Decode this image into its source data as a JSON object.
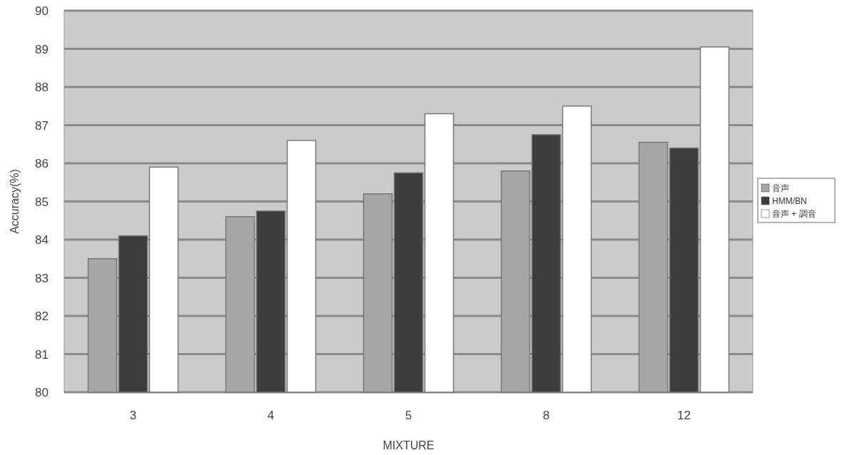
{
  "chart_data": {
    "type": "bar",
    "xlabel": "MIXTURE",
    "ylabel": "Accuracy(%)",
    "categories": [
      "3",
      "4",
      "5",
      "8",
      "12"
    ],
    "series": [
      {
        "name": "音声",
        "color": "#a6a6a6",
        "values": [
          83.5,
          84.6,
          85.2,
          85.8,
          86.55
        ]
      },
      {
        "name": "HMM/BN",
        "color": "#3c3c3c",
        "values": [
          84.1,
          84.75,
          85.75,
          86.75,
          86.4
        ]
      },
      {
        "name": "音声 + 調音",
        "color": "#ffffff",
        "values": [
          85.9,
          86.6,
          87.3,
          87.5,
          89.05
        ]
      }
    ],
    "ylim": [
      80,
      90
    ],
    "yticks": [
      80,
      81,
      82,
      83,
      84,
      85,
      86,
      87,
      88,
      89,
      90
    ],
    "grid": "y",
    "legend": "right"
  }
}
